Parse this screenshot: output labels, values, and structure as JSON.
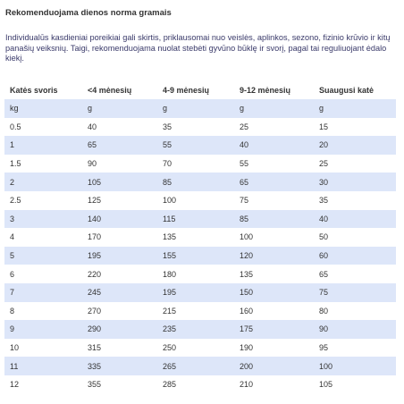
{
  "heading": "Rekomenduojama dienos norma gramais",
  "intro": "Individualūs kasdieniai poreikiai  gali  skirtis,  priklausomai  nuo  veislės,  aplinkos, sezono, fizinio krūvio ir kitų panašių veiksnių. Taigi, rekomenduojama nuolat stebėti gyvūno būklę ir svorį, pagal tai reguliuojant ėdalo kiekį.",
  "table": {
    "headers": [
      "Katės svoris",
      "<4 mėnesių",
      "4-9 mėnesių",
      "9-12 mėnesių",
      "Suaugusi katė"
    ],
    "rows": [
      [
        "kg",
        "g",
        "g",
        "g",
        "g"
      ],
      [
        "0.5",
        "40",
        "35",
        "25",
        "15"
      ],
      [
        "1",
        "65",
        "55",
        "40",
        "20"
      ],
      [
        "1.5",
        "90",
        "70",
        "55",
        "25"
      ],
      [
        "2",
        "105",
        "85",
        "65",
        "30"
      ],
      [
        "2.5",
        "125",
        "100",
        "75",
        "35"
      ],
      [
        "3",
        "140",
        "115",
        "85",
        "40"
      ],
      [
        "4",
        "170",
        "135",
        "100",
        "50"
      ],
      [
        "5",
        "195",
        "155",
        "120",
        "60"
      ],
      [
        "6",
        "220",
        "180",
        "135",
        "65"
      ],
      [
        "7",
        "245",
        "195",
        "150",
        "75"
      ],
      [
        "8",
        "270",
        "215",
        "160",
        "80"
      ],
      [
        "9",
        "290",
        "235",
        "175",
        "90"
      ],
      [
        "10",
        "315",
        "250",
        "190",
        "95"
      ],
      [
        "11",
        "335",
        "265",
        "200",
        "100"
      ],
      [
        "12",
        "355",
        "285",
        "210",
        "105"
      ]
    ]
  },
  "colors": {
    "row_stripe": "#dde6f9",
    "intro_text": "#3a3a6a",
    "body_text": "#333333"
  }
}
